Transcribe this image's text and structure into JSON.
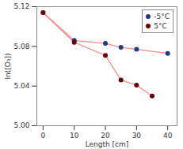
{
  "chart_data": {
    "type": "scatter",
    "xlabel": "Length [cm]",
    "ylabel": "ln([O₃])",
    "color": "#ff8888",
    "series": [
      {
        "name": "-5°C",
        "color": "#1f3a8a",
        "x": [
          0,
          10,
          20,
          25,
          30,
          40
        ],
        "values": [
          5.114,
          5.086,
          5.083,
          5.079,
          5.077,
          5.073
        ]
      },
      {
        "name": "5°C",
        "color": "#6b0000",
        "x": [
          0,
          10,
          20,
          25,
          30,
          35
        ],
        "values": [
          5.114,
          5.084,
          5.071,
          5.046,
          5.041,
          5.03
        ]
      }
    ],
    "xlim": [
      -2,
      43
    ],
    "ylim": [
      5.0,
      5.12
    ],
    "xticks": [
      0,
      10,
      20,
      30,
      40
    ],
    "yticks": [
      {
        "value": 5.0,
        "label": "5.00"
      },
      5.04,
      5.08,
      5.12
    ],
    "grid": false,
    "legend": "upper right"
  }
}
